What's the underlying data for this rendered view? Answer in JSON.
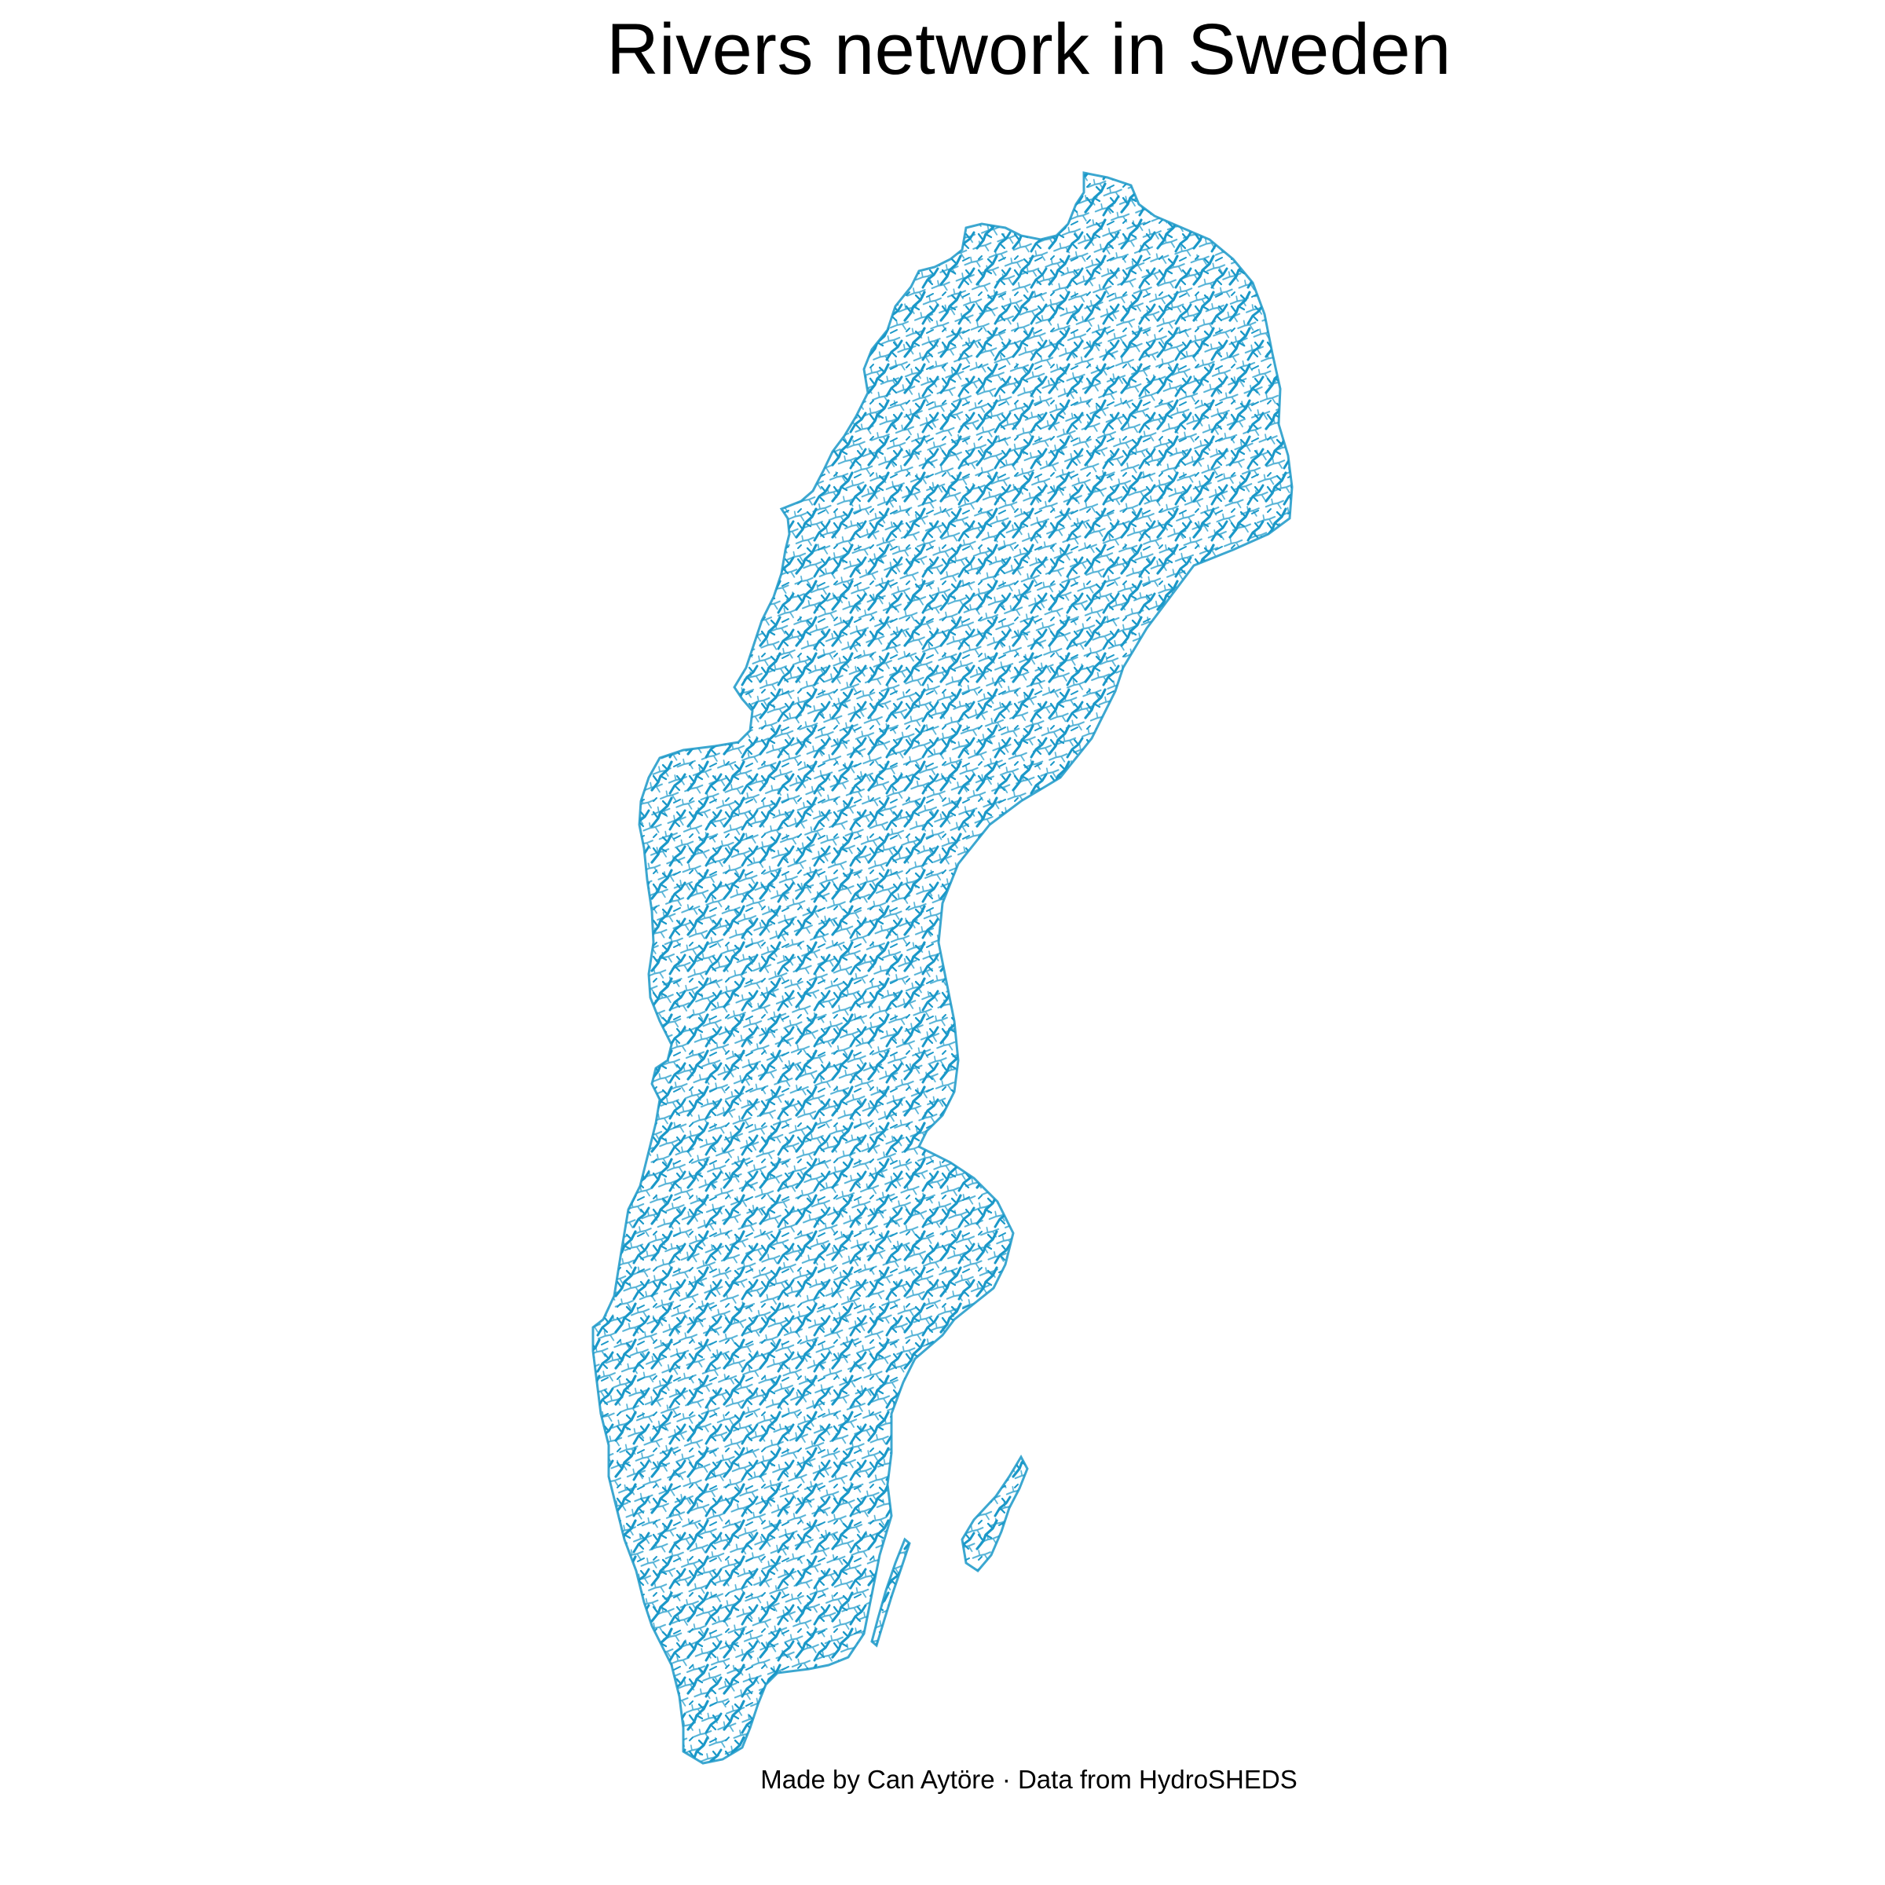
{
  "title": "Rivers network in Sweden",
  "caption": "Made by Can Aytöre · Data from HydroSHEDS",
  "map": {
    "region": "Sweden",
    "layer": "river network",
    "river_color": "#1A98C8",
    "background_color": "#FFFFFF"
  }
}
